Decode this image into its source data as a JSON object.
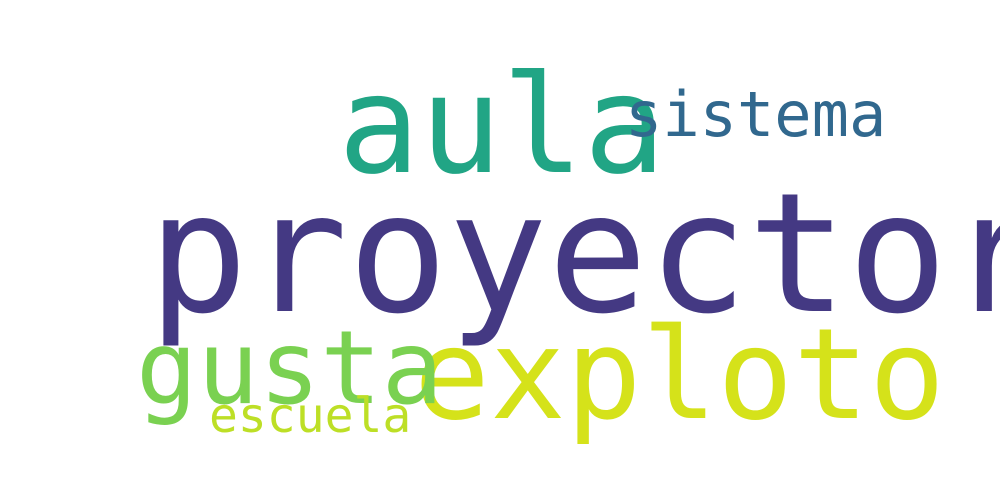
{
  "words": [
    {
      "id": "proyector",
      "text": "proyector",
      "color": "#443983"
    },
    {
      "id": "aula",
      "text": "aula",
      "color": "#21a585"
    },
    {
      "id": "exploto",
      "text": "exploto",
      "color": "#d5e21a"
    },
    {
      "id": "gusta",
      "text": "gusta",
      "color": "#7ad151"
    },
    {
      "id": "sistema",
      "text": "sistema",
      "color": "#31688e"
    },
    {
      "id": "escuela",
      "text": "escuela",
      "color": "#bddf26"
    }
  ],
  "background": "#ffffff"
}
